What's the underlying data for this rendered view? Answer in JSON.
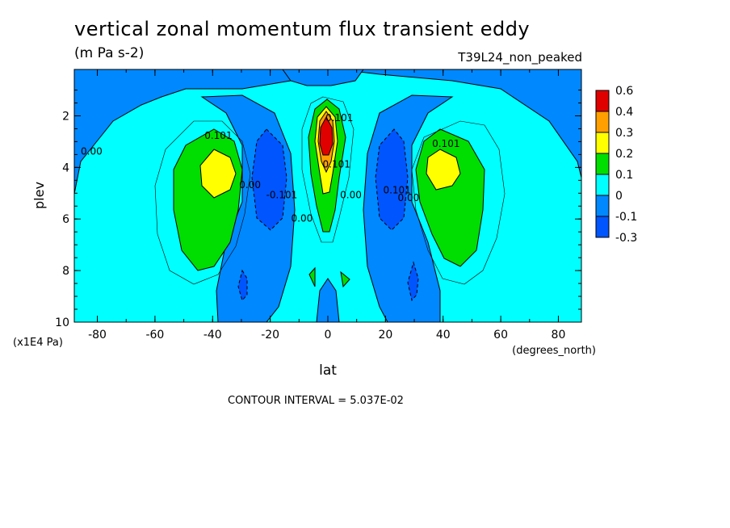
{
  "chart_data": {
    "type": "heatmap",
    "title": "vertical zonal momentum flux transient eddy",
    "units": "(m Pa s-2)",
    "dataset": "T39L24_non_peaked",
    "xlabel": "lat",
    "x_unit_label": "(degrees_north)",
    "ylabel": "plev",
    "y_unit_label": "(x1E4 Pa)",
    "xlim": [
      -88,
      88
    ],
    "ylim": [
      0.2,
      10
    ],
    "y_inverted": false,
    "x_ticks": [
      "-80",
      "-60",
      "-40",
      "-20",
      "0",
      "20",
      "40",
      "60",
      "80"
    ],
    "x_tick_values": [
      -80,
      -60,
      -40,
      -20,
      0,
      20,
      40,
      60,
      80
    ],
    "y_ticks": [
      "2",
      "4",
      "6",
      "8",
      "10"
    ],
    "y_tick_values": [
      2,
      4,
      6,
      8,
      10
    ],
    "contour_interval_text": "CONTOUR INTERVAL = 5.037E-02",
    "colorbar": {
      "labels": [
        "0.6",
        "0.4",
        "0.3",
        "0.2",
        "0.1",
        "0",
        "-0.1",
        "-0.3"
      ],
      "colors": [
        "#e00000",
        "#ffa000",
        "#ffff00",
        "#00dd00",
        "#00ffff",
        "#0088ff",
        "#0055ff"
      ]
    },
    "contour_labels": [
      {
        "text": "0.00",
        "lat": -82,
        "plev": 3.5
      },
      {
        "text": "0.101",
        "lat": -38,
        "plev": 2.9
      },
      {
        "text": "0.00",
        "lat": -27,
        "plev": 4.8
      },
      {
        "text": "-0.101",
        "lat": -16,
        "plev": 5.2
      },
      {
        "text": "0.00",
        "lat": -9,
        "plev": 6.1
      },
      {
        "text": "0.101",
        "lat": 4,
        "plev": 2.2
      },
      {
        "text": "0.101",
        "lat": 3,
        "plev": 4.0
      },
      {
        "text": "0.00",
        "lat": 8,
        "plev": 5.2
      },
      {
        "text": "0.101",
        "lat": 24,
        "plev": 5.0
      },
      {
        "text": "0.00",
        "lat": 28,
        "plev": 5.3
      },
      {
        "text": "0.101",
        "lat": 41,
        "plev": 3.2
      }
    ],
    "features": [
      {
        "name": "south jet max",
        "lat": -40,
        "plev": 4.0,
        "value": 0.25
      },
      {
        "name": "equatorial max",
        "lat": 0,
        "plev": 3.0,
        "value": 0.55
      },
      {
        "name": "north jet max",
        "lat": 40,
        "plev": 3.8,
        "value": 0.25
      },
      {
        "name": "south min",
        "lat": -20,
        "plev": 4.5,
        "value": -0.15
      },
      {
        "name": "north min",
        "lat": 20,
        "plev": 4.5,
        "value": -0.15
      }
    ]
  }
}
